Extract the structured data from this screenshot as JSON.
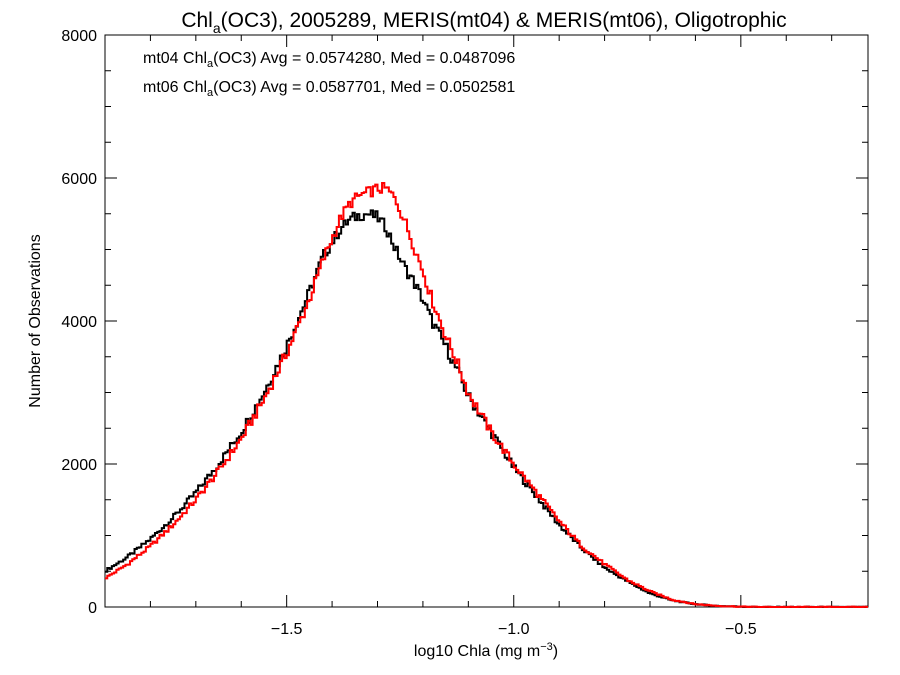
{
  "chart_data": {
    "type": "line",
    "title": {
      "pre": "Chl",
      "sub": "a",
      "post": "(OC3), 2005289, MERIS(mt04) & MERIS(mt06), Oligotrophic"
    },
    "xlabel": {
      "pre": "log10 Chla (mg m",
      "sup": "−3",
      "post": ")"
    },
    "ylabel": "Number of Observations",
    "xlim": [
      -1.9,
      -0.22
    ],
    "ylim": [
      0,
      8000
    ],
    "x_ticks": [
      {
        "value": -1.5,
        "label": "−1.5"
      },
      {
        "value": -1.0,
        "label": "−1.0"
      },
      {
        "value": -0.5,
        "label": "−0.5"
      }
    ],
    "y_ticks": [
      {
        "value": 0,
        "label": "0"
      },
      {
        "value": 2000,
        "label": "2000"
      },
      {
        "value": 4000,
        "label": "4000"
      },
      {
        "value": 6000,
        "label": "6000"
      },
      {
        "value": 8000,
        "label": "8000"
      }
    ],
    "grid": false,
    "legend_position": "top-left",
    "annotations": [
      {
        "series": "mt04",
        "pre": "mt04 Chl",
        "sub": "a",
        "post": "(OC3) Avg = 0.0574280, Med = 0.0487096",
        "color": "#000000"
      },
      {
        "series": "mt06",
        "pre": "mt06 Chl",
        "sub": "a",
        "post": "(OC3) Avg = 0.0587701, Med = 0.0502581",
        "color": "#ff0000"
      }
    ],
    "series": [
      {
        "name": "mt04",
        "color": "#000000",
        "x": [
          -1.9,
          -1.85,
          -1.8,
          -1.75,
          -1.7,
          -1.65,
          -1.6,
          -1.55,
          -1.5,
          -1.45,
          -1.42,
          -1.4,
          -1.38,
          -1.36,
          -1.34,
          -1.32,
          -1.3,
          -1.28,
          -1.26,
          -1.24,
          -1.22,
          -1.2,
          -1.18,
          -1.15,
          -1.12,
          -1.1,
          -1.05,
          -1.0,
          -0.95,
          -0.9,
          -0.85,
          -0.8,
          -0.75,
          -0.7,
          -0.65,
          -0.6,
          -0.55,
          -0.5,
          -0.45,
          -0.4,
          -0.35,
          -0.3,
          -0.22
        ],
        "y": [
          500,
          700,
          950,
          1250,
          1600,
          2000,
          2450,
          3000,
          3650,
          4400,
          4900,
          5100,
          5300,
          5420,
          5480,
          5500,
          5450,
          5300,
          5000,
          4750,
          4550,
          4300,
          4000,
          3650,
          3250,
          2950,
          2450,
          1950,
          1550,
          1150,
          820,
          550,
          360,
          190,
          90,
          40,
          15,
          5,
          0,
          0,
          0,
          0,
          0
        ]
      },
      {
        "name": "mt06",
        "color": "#ff0000",
        "x": [
          -1.9,
          -1.85,
          -1.8,
          -1.75,
          -1.7,
          -1.65,
          -1.6,
          -1.55,
          -1.5,
          -1.45,
          -1.42,
          -1.4,
          -1.38,
          -1.36,
          -1.34,
          -1.32,
          -1.3,
          -1.28,
          -1.26,
          -1.24,
          -1.22,
          -1.2,
          -1.18,
          -1.15,
          -1.12,
          -1.1,
          -1.05,
          -1.0,
          -0.95,
          -0.9,
          -0.85,
          -0.8,
          -0.75,
          -0.7,
          -0.65,
          -0.6,
          -0.55,
          -0.5,
          -0.45,
          -0.4,
          -0.35,
          -0.3,
          -0.22
        ],
        "y": [
          400,
          600,
          850,
          1150,
          1500,
          1900,
          2350,
          2900,
          3550,
          4300,
          4850,
          5150,
          5450,
          5650,
          5750,
          5800,
          5850,
          5850,
          5700,
          5400,
          5050,
          4700,
          4300,
          3800,
          3350,
          3000,
          2450,
          2000,
          1600,
          1200,
          850,
          600,
          380,
          220,
          100,
          40,
          15,
          5,
          0,
          0,
          0,
          0,
          0
        ]
      }
    ]
  }
}
